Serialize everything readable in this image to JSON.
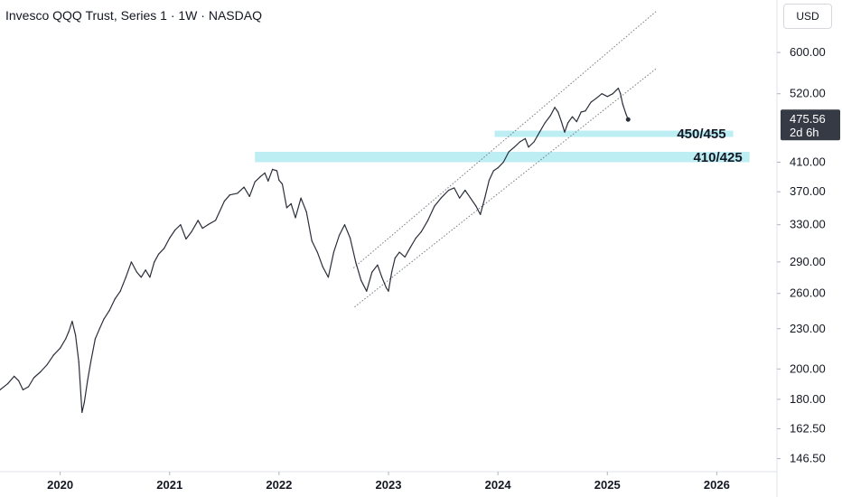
{
  "header": {
    "title": "Invesco QQQ Trust, Series 1 · 1W · NASDAQ",
    "currency": "USD"
  },
  "price_badge": {
    "price": "475.56",
    "countdown": "2d 6h",
    "color": "#363a45"
  },
  "colors": {
    "line": "#2a2e39",
    "zone": "#b2ebf2",
    "channel": "#787b86",
    "axis_text": "#131722"
  },
  "chart_data": {
    "type": "line",
    "scale": "log",
    "ylim": [
      140,
      720
    ],
    "xlim": [
      2019.45,
      2026.55
    ],
    "y_ticks": [
      "146.50",
      "162.50",
      "180.00",
      "200.00",
      "230.00",
      "260.00",
      "290.00",
      "330.00",
      "370.00",
      "410.00",
      "520.00",
      "600.00"
    ],
    "x_ticks": [
      "2020",
      "2021",
      "2022",
      "2023",
      "2024",
      "2025",
      "2026"
    ],
    "zones": [
      {
        "label": "450/455",
        "x_start": 2023.97,
        "x_end": 2026.15,
        "low": 450,
        "high": 455
      },
      {
        "label": "410/425",
        "x_start": 2021.78,
        "x_end": 2026.3,
        "low": 410,
        "high": 425
      }
    ],
    "channel_lines": [
      {
        "x1": 2022.68,
        "y1": 284,
        "x2": 2025.45,
        "y2": 693
      },
      {
        "x1": 2022.69,
        "y1": 248,
        "x2": 2025.45,
        "y2": 568
      }
    ],
    "series": [
      {
        "points": [
          [
            2019.45,
            186
          ],
          [
            2019.52,
            190
          ],
          [
            2019.58,
            195
          ],
          [
            2019.62,
            192
          ],
          [
            2019.66,
            186
          ],
          [
            2019.71,
            188
          ],
          [
            2019.76,
            194
          ],
          [
            2019.82,
            198
          ],
          [
            2019.88,
            203
          ],
          [
            2019.94,
            210
          ],
          [
            2020.0,
            215
          ],
          [
            2020.05,
            222
          ],
          [
            2020.08,
            228
          ],
          [
            2020.11,
            236
          ],
          [
            2020.14,
            225
          ],
          [
            2020.17,
            205
          ],
          [
            2020.2,
            172
          ],
          [
            2020.22,
            178
          ],
          [
            2020.25,
            192
          ],
          [
            2020.28,
            205
          ],
          [
            2020.32,
            222
          ],
          [
            2020.36,
            230
          ],
          [
            2020.4,
            238
          ],
          [
            2020.45,
            245
          ],
          [
            2020.5,
            255
          ],
          [
            2020.55,
            262
          ],
          [
            2020.6,
            275
          ],
          [
            2020.65,
            290
          ],
          [
            2020.7,
            280
          ],
          [
            2020.74,
            275
          ],
          [
            2020.78,
            282
          ],
          [
            2020.82,
            275
          ],
          [
            2020.86,
            290
          ],
          [
            2020.9,
            298
          ],
          [
            2020.95,
            304
          ],
          [
            2021.0,
            315
          ],
          [
            2021.05,
            324
          ],
          [
            2021.1,
            330
          ],
          [
            2021.15,
            314
          ],
          [
            2021.2,
            322
          ],
          [
            2021.26,
            335
          ],
          [
            2021.3,
            326
          ],
          [
            2021.35,
            330
          ],
          [
            2021.42,
            335
          ],
          [
            2021.5,
            358
          ],
          [
            2021.55,
            366
          ],
          [
            2021.62,
            368
          ],
          [
            2021.68,
            376
          ],
          [
            2021.73,
            364
          ],
          [
            2021.78,
            383
          ],
          [
            2021.83,
            390
          ],
          [
            2021.87,
            395
          ],
          [
            2021.9,
            384
          ],
          [
            2021.94,
            400
          ],
          [
            2021.98,
            398
          ],
          [
            2022.0,
            385
          ],
          [
            2022.03,
            380
          ],
          [
            2022.07,
            350
          ],
          [
            2022.11,
            355
          ],
          [
            2022.15,
            338
          ],
          [
            2022.2,
            362
          ],
          [
            2022.25,
            345
          ],
          [
            2022.3,
            312
          ],
          [
            2022.35,
            300
          ],
          [
            2022.4,
            285
          ],
          [
            2022.45,
            275
          ],
          [
            2022.5,
            300
          ],
          [
            2022.55,
            318
          ],
          [
            2022.6,
            330
          ],
          [
            2022.65,
            315
          ],
          [
            2022.7,
            290
          ],
          [
            2022.75,
            272
          ],
          [
            2022.8,
            262
          ],
          [
            2022.85,
            280
          ],
          [
            2022.9,
            287
          ],
          [
            2022.94,
            275
          ],
          [
            2022.98,
            265
          ],
          [
            2023.0,
            262
          ],
          [
            2023.03,
            280
          ],
          [
            2023.06,
            294
          ],
          [
            2023.1,
            300
          ],
          [
            2023.15,
            295
          ],
          [
            2023.2,
            305
          ],
          [
            2023.25,
            315
          ],
          [
            2023.3,
            322
          ],
          [
            2023.36,
            335
          ],
          [
            2023.42,
            352
          ],
          [
            2023.48,
            362
          ],
          [
            2023.55,
            372
          ],
          [
            2023.6,
            375
          ],
          [
            2023.65,
            362
          ],
          [
            2023.7,
            372
          ],
          [
            2023.75,
            362
          ],
          [
            2023.8,
            352
          ],
          [
            2023.84,
            342
          ],
          [
            2023.88,
            362
          ],
          [
            2023.92,
            385
          ],
          [
            2023.96,
            398
          ],
          [
            2024.0,
            402
          ],
          [
            2024.05,
            410
          ],
          [
            2024.1,
            425
          ],
          [
            2024.15,
            432
          ],
          [
            2024.2,
            440
          ],
          [
            2024.25,
            445
          ],
          [
            2024.28,
            432
          ],
          [
            2024.33,
            440
          ],
          [
            2024.38,
            455
          ],
          [
            2024.43,
            470
          ],
          [
            2024.48,
            482
          ],
          [
            2024.52,
            496
          ],
          [
            2024.55,
            488
          ],
          [
            2024.58,
            472
          ],
          [
            2024.61,
            455
          ],
          [
            2024.64,
            470
          ],
          [
            2024.68,
            480
          ],
          [
            2024.72,
            472
          ],
          [
            2024.76,
            488
          ],
          [
            2024.8,
            490
          ],
          [
            2024.85,
            505
          ],
          [
            2024.9,
            512
          ],
          [
            2024.95,
            520
          ],
          [
            2025.0,
            515
          ],
          [
            2025.05,
            520
          ],
          [
            2025.08,
            526
          ],
          [
            2025.1,
            530
          ],
          [
            2025.12,
            520
          ],
          [
            2025.14,
            502
          ],
          [
            2025.17,
            485
          ],
          [
            2025.19,
            475.56
          ]
        ]
      }
    ]
  }
}
